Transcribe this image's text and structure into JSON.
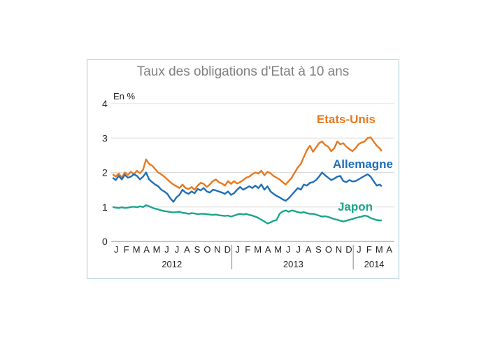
{
  "chart_data": {
    "type": "line",
    "title": "Taux des obligations d'Etat à 10 ans",
    "unit_label": "En %",
    "ylim": [
      0,
      4
    ],
    "yticks": [
      "0",
      "1",
      "2",
      "3",
      "4"
    ],
    "months": [
      "J",
      "F",
      "M",
      "A",
      "M",
      "J",
      "J",
      "A",
      "S",
      "O",
      "N",
      "D",
      "J",
      "F",
      "M",
      "A",
      "M",
      "J",
      "J",
      "A",
      "S",
      "O",
      "N",
      "D",
      "J",
      "F",
      "M",
      "A"
    ],
    "years": [
      "2012",
      "2013",
      "2014"
    ],
    "grid": true,
    "series": [
      {
        "name": "Etats-Unis",
        "color": "#e8781e",
        "x": [
          0,
          0.3,
          0.6,
          0.9,
          1.2,
          1.5,
          1.8,
          2.1,
          2.4,
          2.7,
          3.0,
          3.3,
          3.6,
          3.9,
          4.2,
          4.5,
          4.8,
          5.1,
          5.4,
          5.7,
          6.0,
          6.3,
          6.6,
          6.9,
          7.2,
          7.5,
          7.8,
          8.1,
          8.4,
          8.7,
          9.0,
          9.3,
          9.6,
          9.9,
          10.2,
          10.5,
          10.8,
          11.1,
          11.4,
          11.7,
          12.0,
          12.3,
          12.6,
          12.9,
          13.2,
          13.5,
          13.8,
          14.1,
          14.4,
          14.7,
          15.0,
          15.3,
          15.6,
          15.9,
          16.2,
          16.5,
          16.8,
          17.1,
          17.4,
          17.7,
          18.0,
          18.3,
          18.6,
          18.9,
          19.2,
          19.5,
          19.8,
          20.1,
          20.4,
          20.7,
          21.0,
          21.3,
          21.6,
          21.9,
          22.2,
          22.5,
          22.8,
          23.1,
          23.4,
          23.7,
          24.0,
          24.3,
          24.6,
          24.9,
          25.2,
          25.5,
          25.8,
          26.1,
          26.4,
          26.6
        ],
        "values": [
          1.95,
          1.88,
          1.97,
          1.85,
          2.0,
          1.93,
          2.02,
          1.95,
          2.05,
          1.98,
          2.08,
          2.38,
          2.25,
          2.2,
          2.1,
          2.0,
          1.95,
          1.88,
          1.8,
          1.72,
          1.65,
          1.6,
          1.55,
          1.65,
          1.55,
          1.52,
          1.58,
          1.5,
          1.62,
          1.7,
          1.67,
          1.58,
          1.65,
          1.75,
          1.8,
          1.72,
          1.68,
          1.62,
          1.75,
          1.67,
          1.75,
          1.68,
          1.72,
          1.78,
          1.85,
          1.88,
          1.95,
          2.0,
          1.97,
          2.05,
          1.92,
          2.02,
          1.98,
          1.9,
          1.85,
          1.8,
          1.72,
          1.65,
          1.75,
          1.85,
          2.0,
          2.15,
          2.25,
          2.45,
          2.65,
          2.78,
          2.6,
          2.72,
          2.85,
          2.9,
          2.8,
          2.75,
          2.62,
          2.7,
          2.9,
          2.82,
          2.85,
          2.75,
          2.68,
          2.62,
          2.7,
          2.82,
          2.87,
          2.9,
          3.0,
          3.02,
          2.9,
          2.78,
          2.7,
          2.62
        ]
      },
      {
        "name": "Allemagne",
        "color": "#1f6fb8",
        "x": [
          0,
          0.3,
          0.6,
          0.9,
          1.2,
          1.5,
          1.8,
          2.1,
          2.4,
          2.7,
          3.0,
          3.3,
          3.6,
          3.9,
          4.2,
          4.5,
          4.8,
          5.1,
          5.4,
          5.7,
          6.0,
          6.3,
          6.6,
          6.9,
          7.2,
          7.5,
          7.8,
          8.1,
          8.4,
          8.7,
          9.0,
          9.3,
          9.6,
          9.9,
          10.2,
          10.5,
          10.8,
          11.1,
          11.4,
          11.7,
          12.0,
          12.3,
          12.6,
          12.9,
          13.2,
          13.5,
          13.8,
          14.1,
          14.4,
          14.7,
          15.0,
          15.3,
          15.6,
          15.9,
          16.2,
          16.5,
          16.8,
          17.1,
          17.4,
          17.7,
          18.0,
          18.3,
          18.6,
          18.9,
          19.2,
          19.5,
          19.8,
          20.1,
          20.4,
          20.7,
          21.0,
          21.3,
          21.6,
          21.9,
          22.2,
          22.5,
          22.8,
          23.1,
          23.4,
          23.7,
          24.0,
          24.3,
          24.6,
          24.9,
          25.2,
          25.5,
          25.8,
          26.1,
          26.4,
          26.6
        ],
        "values": [
          1.85,
          1.78,
          1.9,
          1.8,
          1.93,
          1.85,
          1.88,
          1.95,
          1.9,
          1.8,
          1.88,
          2.0,
          1.8,
          1.72,
          1.65,
          1.6,
          1.5,
          1.45,
          1.38,
          1.25,
          1.15,
          1.28,
          1.35,
          1.5,
          1.42,
          1.38,
          1.45,
          1.4,
          1.52,
          1.48,
          1.55,
          1.45,
          1.42,
          1.5,
          1.48,
          1.45,
          1.42,
          1.38,
          1.45,
          1.35,
          1.4,
          1.5,
          1.58,
          1.5,
          1.55,
          1.6,
          1.55,
          1.62,
          1.55,
          1.65,
          1.5,
          1.6,
          1.45,
          1.38,
          1.32,
          1.28,
          1.22,
          1.18,
          1.25,
          1.35,
          1.45,
          1.55,
          1.5,
          1.65,
          1.62,
          1.7,
          1.72,
          1.78,
          1.88,
          2.0,
          1.92,
          1.85,
          1.78,
          1.82,
          1.88,
          1.9,
          1.75,
          1.72,
          1.78,
          1.74,
          1.75,
          1.8,
          1.85,
          1.9,
          1.95,
          1.88,
          1.75,
          1.62,
          1.65,
          1.6
        ]
      },
      {
        "name": "Japon",
        "color": "#1aa58c",
        "x": [
          0,
          0.3,
          0.6,
          0.9,
          1.2,
          1.5,
          1.8,
          2.1,
          2.4,
          2.7,
          3.0,
          3.3,
          3.6,
          3.9,
          4.2,
          4.5,
          4.8,
          5.1,
          5.4,
          5.7,
          6.0,
          6.3,
          6.6,
          6.9,
          7.2,
          7.5,
          7.8,
          8.1,
          8.4,
          8.7,
          9.0,
          9.3,
          9.6,
          9.9,
          10.2,
          10.5,
          10.8,
          11.1,
          11.4,
          11.7,
          12.0,
          12.3,
          12.6,
          12.9,
          13.2,
          13.5,
          13.8,
          14.1,
          14.4,
          14.7,
          15.0,
          15.3,
          15.6,
          15.9,
          16.2,
          16.5,
          16.8,
          17.1,
          17.4,
          17.7,
          18.0,
          18.3,
          18.6,
          18.9,
          19.2,
          19.5,
          19.8,
          20.1,
          20.4,
          20.7,
          21.0,
          21.3,
          21.6,
          21.9,
          22.2,
          22.5,
          22.8,
          23.1,
          23.4,
          23.7,
          24.0,
          24.3,
          24.6,
          24.9,
          25.2,
          25.5,
          25.8,
          26.1,
          26.4,
          26.6
        ],
        "values": [
          1.0,
          0.98,
          0.97,
          0.99,
          0.97,
          0.98,
          1.0,
          1.01,
          0.99,
          1.02,
          1.0,
          1.05,
          1.02,
          0.98,
          0.95,
          0.93,
          0.9,
          0.88,
          0.87,
          0.85,
          0.84,
          0.85,
          0.86,
          0.83,
          0.82,
          0.8,
          0.82,
          0.81,
          0.79,
          0.8,
          0.8,
          0.79,
          0.78,
          0.77,
          0.78,
          0.76,
          0.75,
          0.74,
          0.75,
          0.72,
          0.75,
          0.78,
          0.8,
          0.78,
          0.8,
          0.77,
          0.75,
          0.72,
          0.68,
          0.63,
          0.58,
          0.52,
          0.55,
          0.6,
          0.62,
          0.8,
          0.87,
          0.9,
          0.86,
          0.9,
          0.88,
          0.85,
          0.83,
          0.85,
          0.82,
          0.8,
          0.8,
          0.78,
          0.75,
          0.72,
          0.73,
          0.71,
          0.68,
          0.65,
          0.63,
          0.6,
          0.58,
          0.6,
          0.63,
          0.65,
          0.68,
          0.7,
          0.72,
          0.75,
          0.73,
          0.68,
          0.65,
          0.62,
          0.61,
          0.61
        ]
      }
    ]
  }
}
